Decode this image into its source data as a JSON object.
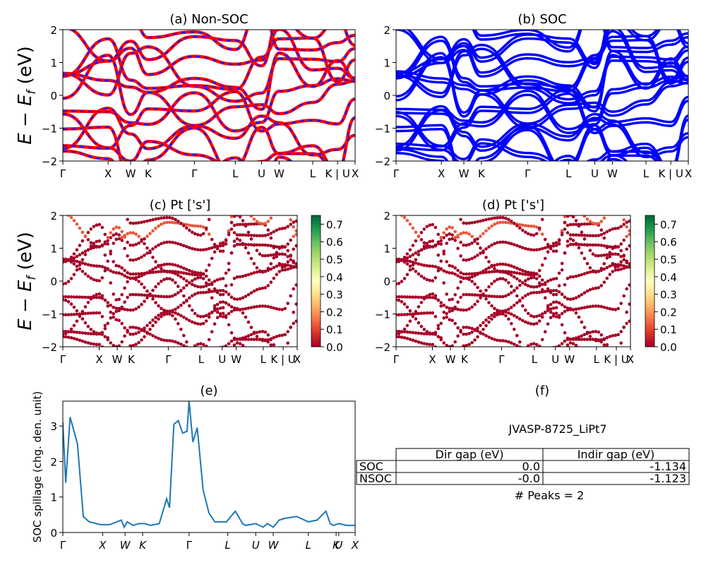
{
  "ylabel_band": "E − E_f (eV)",
  "ylabel_main": "E − E",
  "ylabel_sub": "f",
  "ylabel_units": " (eV)",
  "kpath": [
    "Γ",
    "X",
    "W",
    "K",
    "Γ",
    "L",
    "U",
    "W",
    "L",
    "K | U",
    "X"
  ],
  "kpath_spill": [
    "Γ",
    "X",
    "W",
    "K",
    "Γ",
    "L",
    "U",
    "W",
    "L",
    "K",
    "U",
    "X"
  ],
  "colorbar_ticks": [
    "0.0",
    "0.1",
    "0.2",
    "0.3",
    "0.4",
    "0.5",
    "0.6",
    "0.7"
  ],
  "colors": {
    "nonsoc_red": "#ff0000",
    "nonsoc_blue": "#1a1aff",
    "soc_blue": "#0000ff",
    "spill_line": "#1f77b4",
    "dot_dark": "#a50026",
    "dot_light": "#e8583a"
  },
  "chart_data": [
    {
      "id": "a",
      "type": "line",
      "title": "(a) Non-SOC",
      "ylabel": "E − E_f (eV)",
      "ylim": [
        -2,
        2
      ],
      "yticks": [
        -2,
        -1,
        0,
        1,
        2
      ],
      "x": [
        "Γ",
        "X",
        "W",
        "K",
        "Γ",
        "L",
        "U",
        "W",
        "L",
        "K | U",
        "X"
      ],
      "series": [
        {
          "values": [
            0.55,
            -0.35,
            -0.95,
            -0.4,
            0.3,
            0.05,
            -0.9,
            -0.2,
            0.2,
            -0.5,
            -0.75
          ]
        },
        {
          "values": [
            -0.95,
            -1.6,
            -1.2,
            -1.0,
            -0.15,
            -1.1,
            -1.4,
            -0.6,
            -1.3,
            -1.0,
            -1.2
          ]
        },
        {
          "values": [
            1.95,
            0.8,
            -0.3,
            -0.1,
            0.45,
            0.3,
            1.3,
            0.6,
            0.2,
            0.9,
            1.85
          ]
        }
      ]
    },
    {
      "id": "b",
      "type": "line",
      "title": "(b) SOC",
      "ylim": [
        -2,
        2
      ],
      "yticks": [
        -2,
        -1,
        0,
        1,
        2
      ],
      "x": [
        "Γ",
        "X",
        "W",
        "K",
        "Γ",
        "L",
        "U",
        "W",
        "L",
        "K | U",
        "X"
      ],
      "series": [
        {
          "values": [
            0.55,
            -0.35,
            -0.95,
            -0.4,
            0.3,
            0.05,
            -0.9,
            -0.2,
            0.2,
            -0.5,
            -0.75
          ]
        },
        {
          "values": [
            -0.95,
            -1.6,
            -1.2,
            -1.0,
            -0.15,
            -1.1,
            -1.4,
            -0.6,
            -1.3,
            -1.0,
            -1.2
          ]
        },
        {
          "values": [
            1.95,
            0.8,
            -0.3,
            -0.1,
            0.45,
            0.3,
            1.3,
            0.6,
            0.2,
            0.9,
            1.85
          ]
        }
      ]
    },
    {
      "id": "c",
      "type": "scatter",
      "title": "(c)  Pt ['s']",
      "ylabel": "E − E_f (eV)",
      "ylim": [
        -2,
        2
      ],
      "yticks": [
        -2,
        -1,
        0,
        1,
        2
      ],
      "colorbar": {
        "range": [
          0.0,
          0.75
        ],
        "ticks": [
          0.0,
          0.1,
          0.2,
          0.3,
          0.4,
          0.5,
          0.6,
          0.7
        ],
        "colormap": "RdYlGn"
      }
    },
    {
      "id": "d",
      "type": "scatter",
      "title": "(d) Pt ['s']",
      "ylim": [
        -2,
        2
      ],
      "yticks": [
        -2,
        -1,
        0,
        1,
        2
      ],
      "colorbar": {
        "range": [
          0.0,
          0.75
        ],
        "ticks": [
          0.0,
          0.1,
          0.2,
          0.3,
          0.4,
          0.5,
          0.6,
          0.7
        ],
        "colormap": "RdYlGn"
      }
    },
    {
      "id": "e",
      "type": "line",
      "title": "(e)",
      "ylabel": "SOC spillage (chg. den. unit)",
      "ylim": [
        0,
        3.7
      ],
      "yticks": [
        0,
        1,
        2,
        3
      ],
      "x_ticks": [
        "Γ",
        "X",
        "W",
        "K",
        "Γ",
        "L",
        "U",
        "W",
        "L",
        "K",
        "U",
        "X"
      ],
      "kpos": [
        0,
        0.136,
        0.213,
        0.273,
        0.432,
        0.564,
        0.66,
        0.72,
        0.84,
        0.935,
        0.944,
        1.0
      ],
      "x": [
        0,
        0.01,
        0.025,
        0.05,
        0.07,
        0.09,
        0.13,
        0.16,
        0.2,
        0.21,
        0.22,
        0.24,
        0.26,
        0.28,
        0.3,
        0.33,
        0.355,
        0.365,
        0.38,
        0.395,
        0.41,
        0.425,
        0.432,
        0.445,
        0.46,
        0.48,
        0.5,
        0.52,
        0.54,
        0.56,
        0.59,
        0.615,
        0.625,
        0.66,
        0.685,
        0.7,
        0.72,
        0.74,
        0.76,
        0.8,
        0.84,
        0.87,
        0.9,
        0.915,
        0.925,
        0.945,
        0.97,
        1.0
      ],
      "y": [
        3.1,
        1.4,
        3.25,
        2.5,
        0.45,
        0.3,
        0.22,
        0.22,
        0.35,
        0.15,
        0.3,
        0.2,
        0.25,
        0.25,
        0.2,
        0.25,
        0.95,
        0.7,
        3.05,
        3.15,
        2.8,
        2.85,
        3.7,
        2.55,
        2.95,
        1.2,
        0.55,
        0.3,
        0.3,
        0.3,
        0.6,
        0.25,
        0.2,
        0.25,
        0.15,
        0.25,
        0.15,
        0.35,
        0.4,
        0.45,
        0.3,
        0.35,
        0.6,
        0.25,
        0.2,
        0.25,
        0.2,
        0.2
      ]
    },
    {
      "id": "f",
      "type": "table",
      "title": "(f)",
      "material": "JVASP-8725_LiPt7",
      "columns": [
        "",
        "Dir gap (eV)",
        "Indir gap (eV)"
      ],
      "rows": [
        [
          "SOC",
          "0.0",
          "-1.134"
        ],
        [
          "NSOC",
          "-0.0",
          "-1.123"
        ]
      ],
      "peaks_text": "# Peaks = 2"
    }
  ]
}
